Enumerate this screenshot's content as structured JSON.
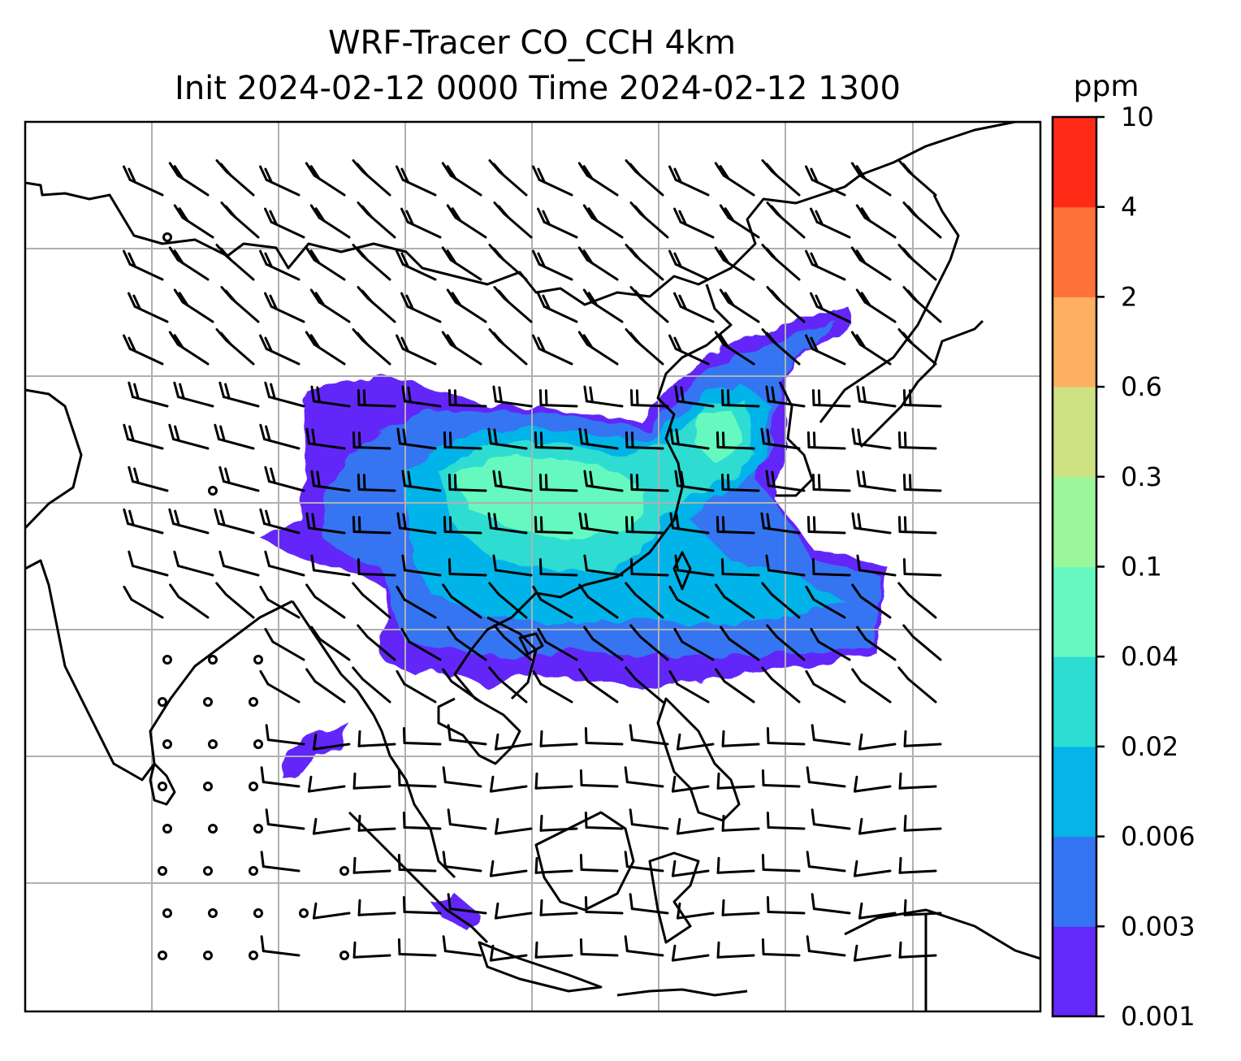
{
  "title": {
    "line1": "WRF-Tracer CO_CCH 4km",
    "line2": "Init 2024-02-12 0000 Time 2024-02-12 1300"
  },
  "map": {
    "gridlines": true,
    "gridline_color": "#b0b0b0",
    "coastline_color": "#000000",
    "barb_color": "#000000",
    "background": "#ffffff"
  },
  "colorbar": {
    "units": "ppm",
    "ticks": [
      "0.001",
      "0.003",
      "0.006",
      "0.02",
      "0.04",
      "0.1",
      "0.3",
      "0.6",
      "2",
      "4",
      "10"
    ],
    "colors": [
      "#6428f8",
      "#3574f2",
      "#06b4e9",
      "#2ddcd2",
      "#65f9bf",
      "#9af79b",
      "#cfe283",
      "#fdb060",
      "#fe7137",
      "#ff2b17"
    ]
  }
}
